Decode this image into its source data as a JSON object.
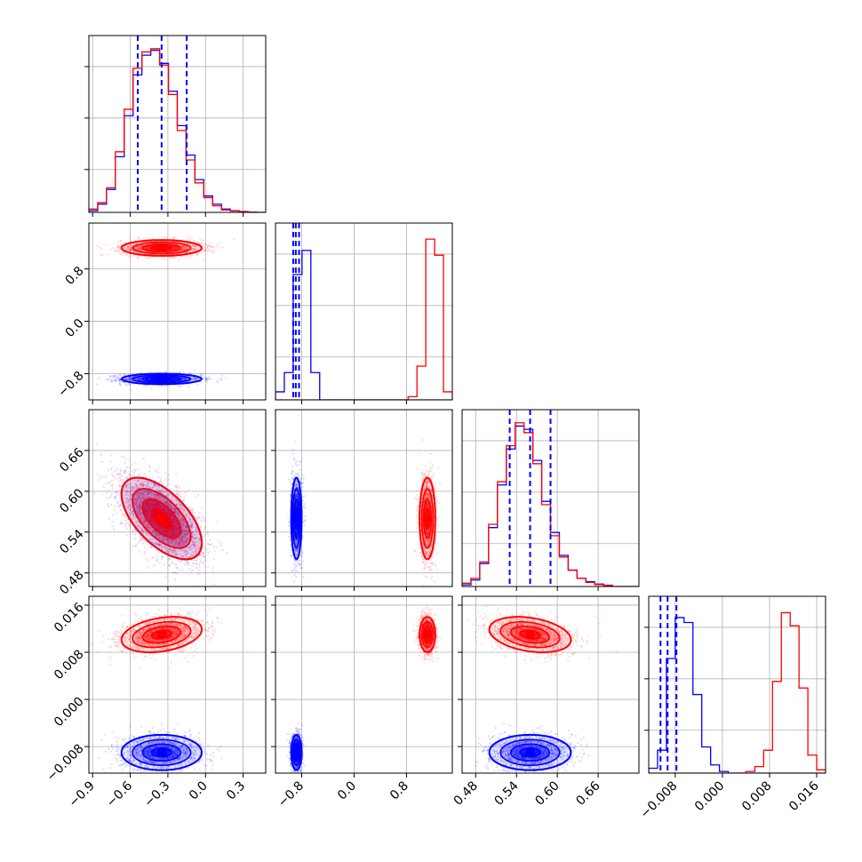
{
  "colors": {
    "blue": "#0000ff",
    "red": "#ff0000",
    "grid": "#b0b0b0",
    "frame": "#000000"
  },
  "chart_data": {
    "type": "corner",
    "parameters": 4,
    "grid": true,
    "series": [
      {
        "color": "blue",
        "means": [
          -0.35,
          -0.88,
          0.56,
          -0.009
        ],
        "sds": [
          0.16,
          0.04,
          0.03,
          0.0015
        ],
        "correlations": {
          "0-2": -0.6,
          "2-3": 0.0,
          "0-3": 0.0,
          "0-1": 0.0,
          "1-2": 0.0,
          "1-3": 0.0
        },
        "quantile_lines": [
          [
            -0.54,
            -0.35,
            -0.15
          ],
          [
            -0.93,
            -0.89,
            -0.84
          ],
          [
            0.53,
            0.56,
            0.59
          ],
          [
            -0.0105,
            -0.0093,
            -0.0078
          ]
        ]
      },
      {
        "color": "red",
        "means": [
          -0.35,
          1.12,
          0.56,
          0.011
        ],
        "sds": [
          0.16,
          0.06,
          0.03,
          0.0015
        ],
        "correlations": {
          "0-2": -0.6,
          "2-3": -0.3,
          "0-3": 0.3,
          "0-1": 0.0,
          "1-2": 0.0,
          "1-3": 0.0
        }
      }
    ],
    "axes": [
      {
        "range": [
          -0.93,
          0.48
        ],
        "ticks": [
          -0.9,
          -0.6,
          -0.3,
          0.0,
          0.3
        ],
        "tick_labels": [
          "−0.9",
          "−0.6",
          "−0.3",
          "0.0",
          "0.3"
        ]
      },
      {
        "range": [
          -1.2,
          1.5
        ],
        "ticks": [
          -0.8,
          0.0,
          0.8
        ],
        "tick_labels": [
          "−0.8",
          "0.0",
          "0.8"
        ]
      },
      {
        "range": [
          0.46,
          0.72
        ],
        "ticks": [
          0.48,
          0.54,
          0.6,
          0.66
        ],
        "tick_labels": [
          "0.48",
          "0.54",
          "0.60",
          "0.66"
        ]
      },
      {
        "range": [
          -0.0125,
          0.0175
        ],
        "ticks": [
          -0.008,
          0.0,
          0.008,
          0.016
        ],
        "tick_labels": [
          "−0.008",
          "0.000",
          "0.008",
          "0.016"
        ]
      }
    ],
    "histograms": [
      {
        "bins": 20,
        "ymax": 1.08,
        "blue": [
          0.01,
          0.05,
          0.14,
          0.34,
          0.59,
          0.84,
          0.96,
          0.99,
          0.91,
          0.74,
          0.53,
          0.35,
          0.2,
          0.1,
          0.05,
          0.02,
          0.01,
          0.005,
          0.002,
          0.0
        ],
        "red": [
          0.02,
          0.06,
          0.15,
          0.37,
          0.63,
          0.88,
          0.98,
          1.0,
          0.9,
          0.72,
          0.5,
          0.32,
          0.18,
          0.09,
          0.04,
          0.015,
          0.008,
          0.004,
          0.001,
          0.0
        ]
      },
      {
        "bins": 20,
        "ymax": 1.1,
        "blue": [
          0.05,
          0.17,
          0.78,
          0.93,
          0.17,
          0.0,
          0.0,
          0.0,
          0.0,
          0.0,
          0.0,
          0.0,
          0.0,
          0.0,
          0.0,
          0.0,
          0.0,
          0.0,
          0.0,
          0.0
        ],
        "red": [
          0.0,
          0.0,
          0.0,
          0.0,
          0.0,
          0.0,
          0.0,
          0.0,
          0.0,
          0.0,
          0.0,
          0.0,
          0.0,
          0.0,
          0.0,
          0.02,
          0.21,
          1.0,
          0.9,
          0.05
        ]
      },
      {
        "bins": 20,
        "ymax": 1.08,
        "blue": [
          0.01,
          0.04,
          0.14,
          0.36,
          0.62,
          0.84,
          0.98,
          0.96,
          0.77,
          0.52,
          0.33,
          0.19,
          0.1,
          0.05,
          0.03,
          0.015,
          0.008,
          0.0,
          0.0,
          0.0
        ],
        "red": [
          0.02,
          0.05,
          0.15,
          0.38,
          0.64,
          0.86,
          1.0,
          0.94,
          0.75,
          0.5,
          0.31,
          0.18,
          0.1,
          0.05,
          0.025,
          0.012,
          0.006,
          0.0,
          0.0,
          0.0
        ]
      },
      {
        "bins": 20,
        "ymax": 1.08,
        "blue": [
          0.03,
          0.14,
          0.7,
          0.95,
          0.92,
          0.48,
          0.16,
          0.05,
          0.01,
          0.0,
          0.0,
          0.0,
          0.0,
          0.0,
          0.0,
          0.0,
          0.0,
          0.0,
          0.0,
          0.0
        ],
        "red": [
          0.0,
          0.0,
          0.0,
          0.0,
          0.0,
          0.0,
          0.0,
          0.0,
          0.0,
          0.0,
          0.0,
          0.01,
          0.04,
          0.14,
          0.56,
          0.98,
          0.9,
          0.52,
          0.11,
          0.02
        ]
      }
    ]
  }
}
